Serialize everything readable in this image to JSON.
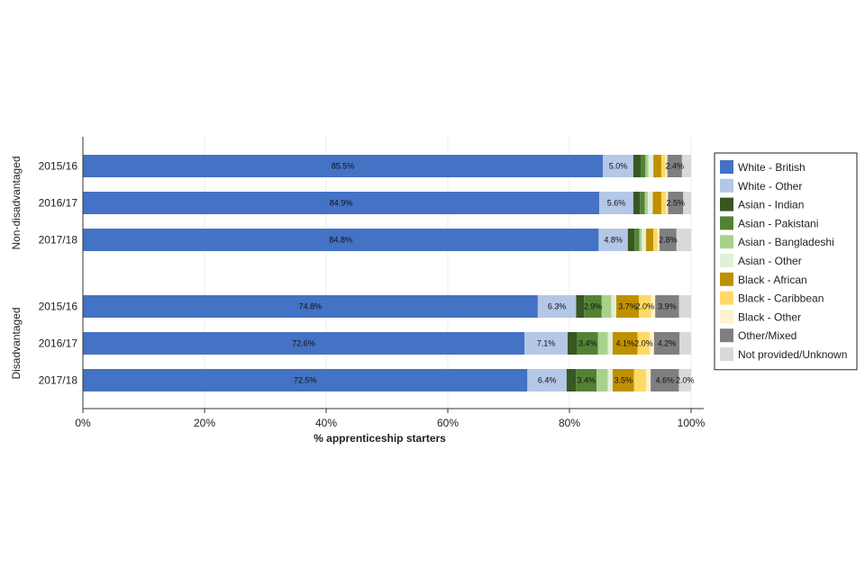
{
  "chart_data": {
    "type": "bar",
    "orientation": "horizontal",
    "stacked": true,
    "xlabel": "% apprenticeship starters",
    "xlim": [
      0,
      100
    ],
    "xticks": [
      "0%",
      "20%",
      "40%",
      "60%",
      "80%",
      "100%"
    ],
    "legend_position": "right",
    "grid": true,
    "groups": [
      {
        "name": "Non-disadvantaged",
        "categories": [
          "2015/16",
          "2016/17",
          "2017/18"
        ]
      },
      {
        "name": "Disadvantaged",
        "categories": [
          "2015/16",
          "2016/17",
          "2017/18"
        ]
      }
    ],
    "series": [
      {
        "name": "White - British",
        "color": "#4472c4",
        "values": [
          85.5,
          84.9,
          84.8,
          74.8,
          72.6,
          72.5
        ],
        "labels": [
          "85.5%",
          "84.9%",
          "84.8%",
          "74.8%",
          "72.6%",
          "72.5%"
        ]
      },
      {
        "name": "White - Other",
        "color": "#b4c7e7",
        "values": [
          5.0,
          5.6,
          4.8,
          6.3,
          7.1,
          6.4
        ],
        "labels": [
          "5.0%",
          "5.6%",
          "4.8%",
          "6.3%",
          "7.1%",
          "6.4%"
        ]
      },
      {
        "name": "Asian - Indian",
        "color": "#385723",
        "values": [
          1.2,
          1.1,
          1.1,
          1.3,
          1.6,
          1.5
        ],
        "labels": [
          "",
          "",
          "",
          "",
          "",
          ""
        ]
      },
      {
        "name": "Asian - Pakistani",
        "color": "#548235",
        "values": [
          0.8,
          0.8,
          0.8,
          2.9,
          3.4,
          3.4
        ],
        "labels": [
          "",
          "",
          "",
          "2.9%",
          "3.4%",
          "3.4%"
        ]
      },
      {
        "name": "Asian - Bangladeshi",
        "color": "#a9d18e",
        "values": [
          0.5,
          0.5,
          0.4,
          1.6,
          1.6,
          1.8
        ],
        "labels": [
          "",
          "",
          "",
          "",
          "",
          ""
        ]
      },
      {
        "name": "Asian - Other",
        "color": "#e2f0d9",
        "values": [
          0.8,
          0.8,
          0.7,
          0.8,
          0.8,
          0.8
        ],
        "labels": [
          "",
          "",
          "",
          "",
          "",
          ""
        ]
      },
      {
        "name": "Black - African",
        "color": "#bf9000",
        "values": [
          1.3,
          1.4,
          1.2,
          3.7,
          4.1,
          3.5
        ],
        "labels": [
          "",
          "",
          "",
          "3.7%",
          "4.1%",
          "3.5%"
        ]
      },
      {
        "name": "Black - Caribbean",
        "color": "#ffd966",
        "values": [
          0.7,
          0.8,
          0.7,
          2.0,
          2.0,
          2.0
        ],
        "labels": [
          "",
          "",
          "",
          "2.0%",
          "2.0%",
          ""
        ]
      },
      {
        "name": "Black - Other",
        "color": "#fff2cc",
        "values": [
          0.3,
          0.3,
          0.3,
          0.7,
          0.7,
          0.7
        ],
        "labels": [
          "",
          "",
          "",
          "",
          "",
          ""
        ]
      },
      {
        "name": "Other/Mixed",
        "color": "#7f7f7f",
        "values": [
          2.4,
          2.5,
          2.8,
          3.9,
          4.2,
          4.6
        ],
        "labels": [
          "2.4%",
          "2.5%",
          "2.8%",
          "3.9%",
          "4.2%",
          "4.6%"
        ]
      },
      {
        "name": "Not provided/Unknown",
        "color": "#d9d9d9",
        "values": [
          1.5,
          1.3,
          2.4,
          2.0,
          1.9,
          2.0
        ],
        "labels": [
          "",
          "",
          "",
          "",
          "",
          "2.0%"
        ]
      }
    ]
  }
}
